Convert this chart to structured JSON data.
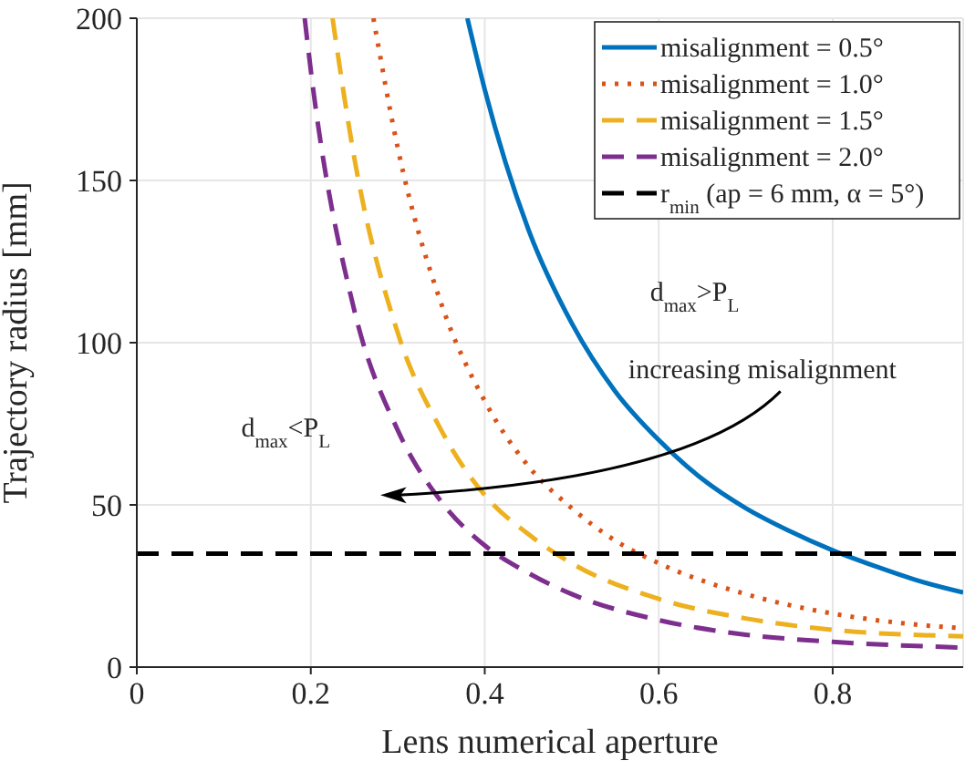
{
  "chart_data": {
    "type": "line",
    "xlabel": "Lens numerical aperture",
    "ylabel": "Trajectory radius [mm]",
    "xlim": [
      0,
      0.95
    ],
    "ylim": [
      0,
      200
    ],
    "xticks": [
      0,
      0.2,
      0.4,
      0.6,
      0.8
    ],
    "yticks": [
      0,
      50,
      100,
      150,
      200
    ],
    "grid": true,
    "legend": "top right",
    "marker": "none",
    "series": [
      {
        "name": "misalignment = 0.5°",
        "color": "#0072bd",
        "line_style": "solid",
        "x": [
          0.38,
          0.4,
          0.45,
          0.5,
          0.55,
          0.6,
          0.65,
          0.7,
          0.75,
          0.8,
          0.85,
          0.9,
          0.95
        ],
        "values": [
          200,
          178,
          135,
          106,
          85,
          70,
          58,
          49,
          42,
          36,
          31,
          26.5,
          23
        ]
      },
      {
        "name": "misalignment = 1.0°",
        "color": "#d95319",
        "line_style": "dotted",
        "x": [
          0.272,
          0.3,
          0.35,
          0.4,
          0.45,
          0.5,
          0.55,
          0.6,
          0.7,
          0.8,
          0.9,
          0.95
        ],
        "values": [
          200,
          160,
          112,
          82,
          62,
          49,
          39,
          32,
          22.5,
          16.5,
          13,
          12
        ]
      },
      {
        "name": "misalignment = 1.5°",
        "color": "#edb120",
        "line_style": "dashed",
        "x": [
          0.225,
          0.25,
          0.3,
          0.35,
          0.4,
          0.45,
          0.5,
          0.6,
          0.7,
          0.8,
          0.95
        ],
        "values": [
          200,
          157,
          103,
          73,
          53,
          41,
          32,
          21,
          15,
          11.5,
          9.5
        ]
      },
      {
        "name": "misalignment = 2.0°",
        "color": "#7e2f8e",
        "line_style": "dashed",
        "x": [
          0.193,
          0.2,
          0.25,
          0.3,
          0.35,
          0.4,
          0.45,
          0.5,
          0.6,
          0.7,
          0.8,
          0.95
        ],
        "values": [
          200,
          184,
          110,
          73,
          51,
          37.5,
          29,
          22.5,
          14.5,
          10,
          7.8,
          6
        ]
      },
      {
        "name": "r$_{min}$ (ap = 6 mm, α = 5°)",
        "color": "#000000",
        "line_style": "dashed",
        "x": [
          0,
          0.95
        ],
        "values": [
          35,
          35
        ]
      }
    ],
    "annotations": [
      "d$_{max}$>P$_{L}$",
      "increasing misalignment",
      "d$_{max}$<P$_{L}$"
    ]
  }
}
